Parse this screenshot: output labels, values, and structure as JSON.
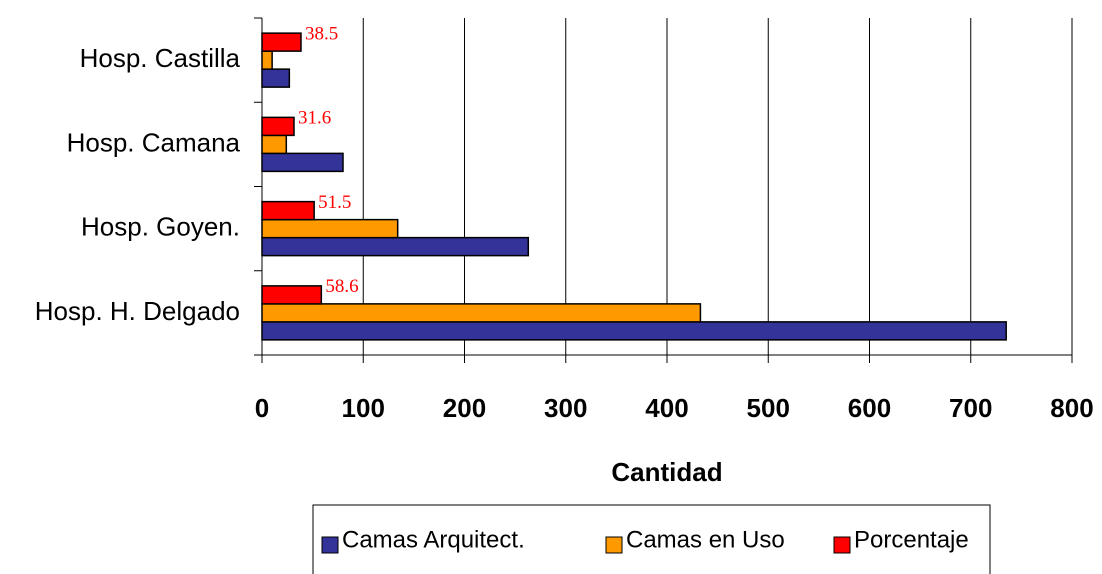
{
  "chart_data": {
    "type": "bar",
    "orientation": "horizontal",
    "x_label": "Cantidad",
    "categories": [
      "Hosp. Castilla",
      "Hosp. Camana",
      "Hosp. Goyen.",
      "Hosp. H. Delgado"
    ],
    "series": [
      {
        "name": "Camas Arquitect.",
        "color": "#333399",
        "values": [
          27,
          80,
          263,
          735
        ]
      },
      {
        "name": "Camas en Uso",
        "color": "#ff9900",
        "values": [
          10,
          24,
          134,
          433
        ]
      },
      {
        "name": "Porcentaje",
        "color": "#ff0000",
        "values": [
          38.5,
          31.6,
          51.5,
          58.6
        ],
        "show_value_labels": true
      }
    ],
    "xlim": [
      0,
      800
    ],
    "xticks": [
      0,
      100,
      200,
      300,
      400,
      500,
      600,
      700,
      800
    ],
    "grid": true,
    "legend": "bottom"
  }
}
